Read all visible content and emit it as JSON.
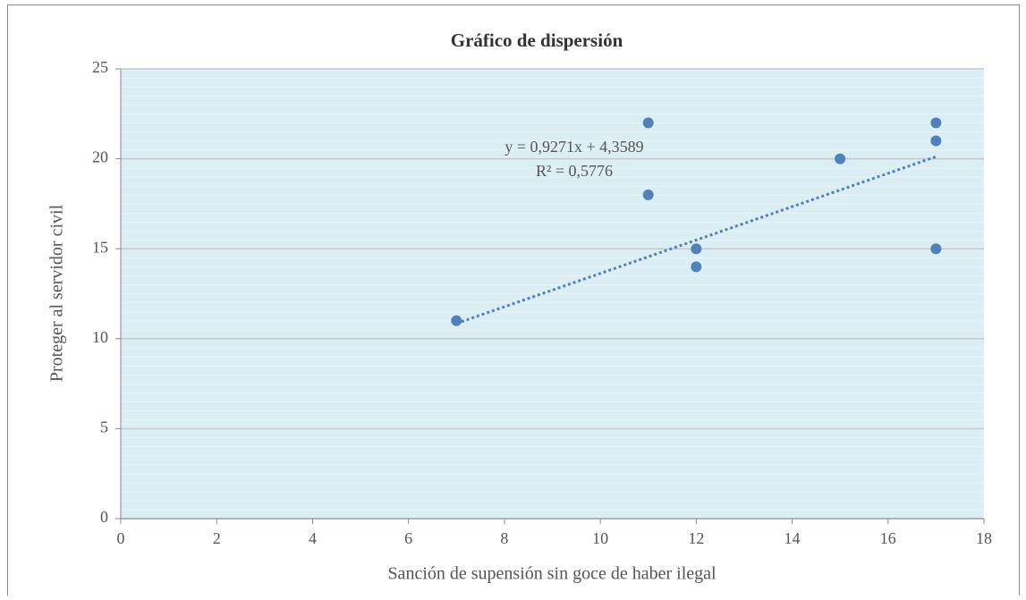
{
  "chart_data": {
    "type": "scatter",
    "title": "Gráfico de dispersión",
    "x_label": "Sanción de supensión sin goce de haber ilegal",
    "y_label": "Proteger al servidor civil",
    "series": [
      {
        "name": "Proteger al servidor civil",
        "color": "#4f81bd",
        "x": [
          7,
          11,
          11,
          12,
          12,
          15,
          17,
          17,
          17
        ],
        "values": [
          11,
          22,
          18,
          15,
          14,
          20,
          22,
          21,
          15
        ]
      }
    ],
    "trendline": {
      "slope": 0.9271,
      "intercept": 4.3589,
      "color": "#4f81bd",
      "equation_label": "y = 0,9271x  + 4,3589",
      "r2_label": "R² = 0,5776"
    },
    "xlim": [
      0,
      18
    ],
    "xticks": [
      0,
      2,
      4,
      6,
      8,
      10,
      12,
      14,
      16,
      18
    ],
    "ylim": [
      0,
      25
    ],
    "yticks": [
      0,
      5,
      10,
      15,
      20,
      25
    ],
    "grid": true
  }
}
